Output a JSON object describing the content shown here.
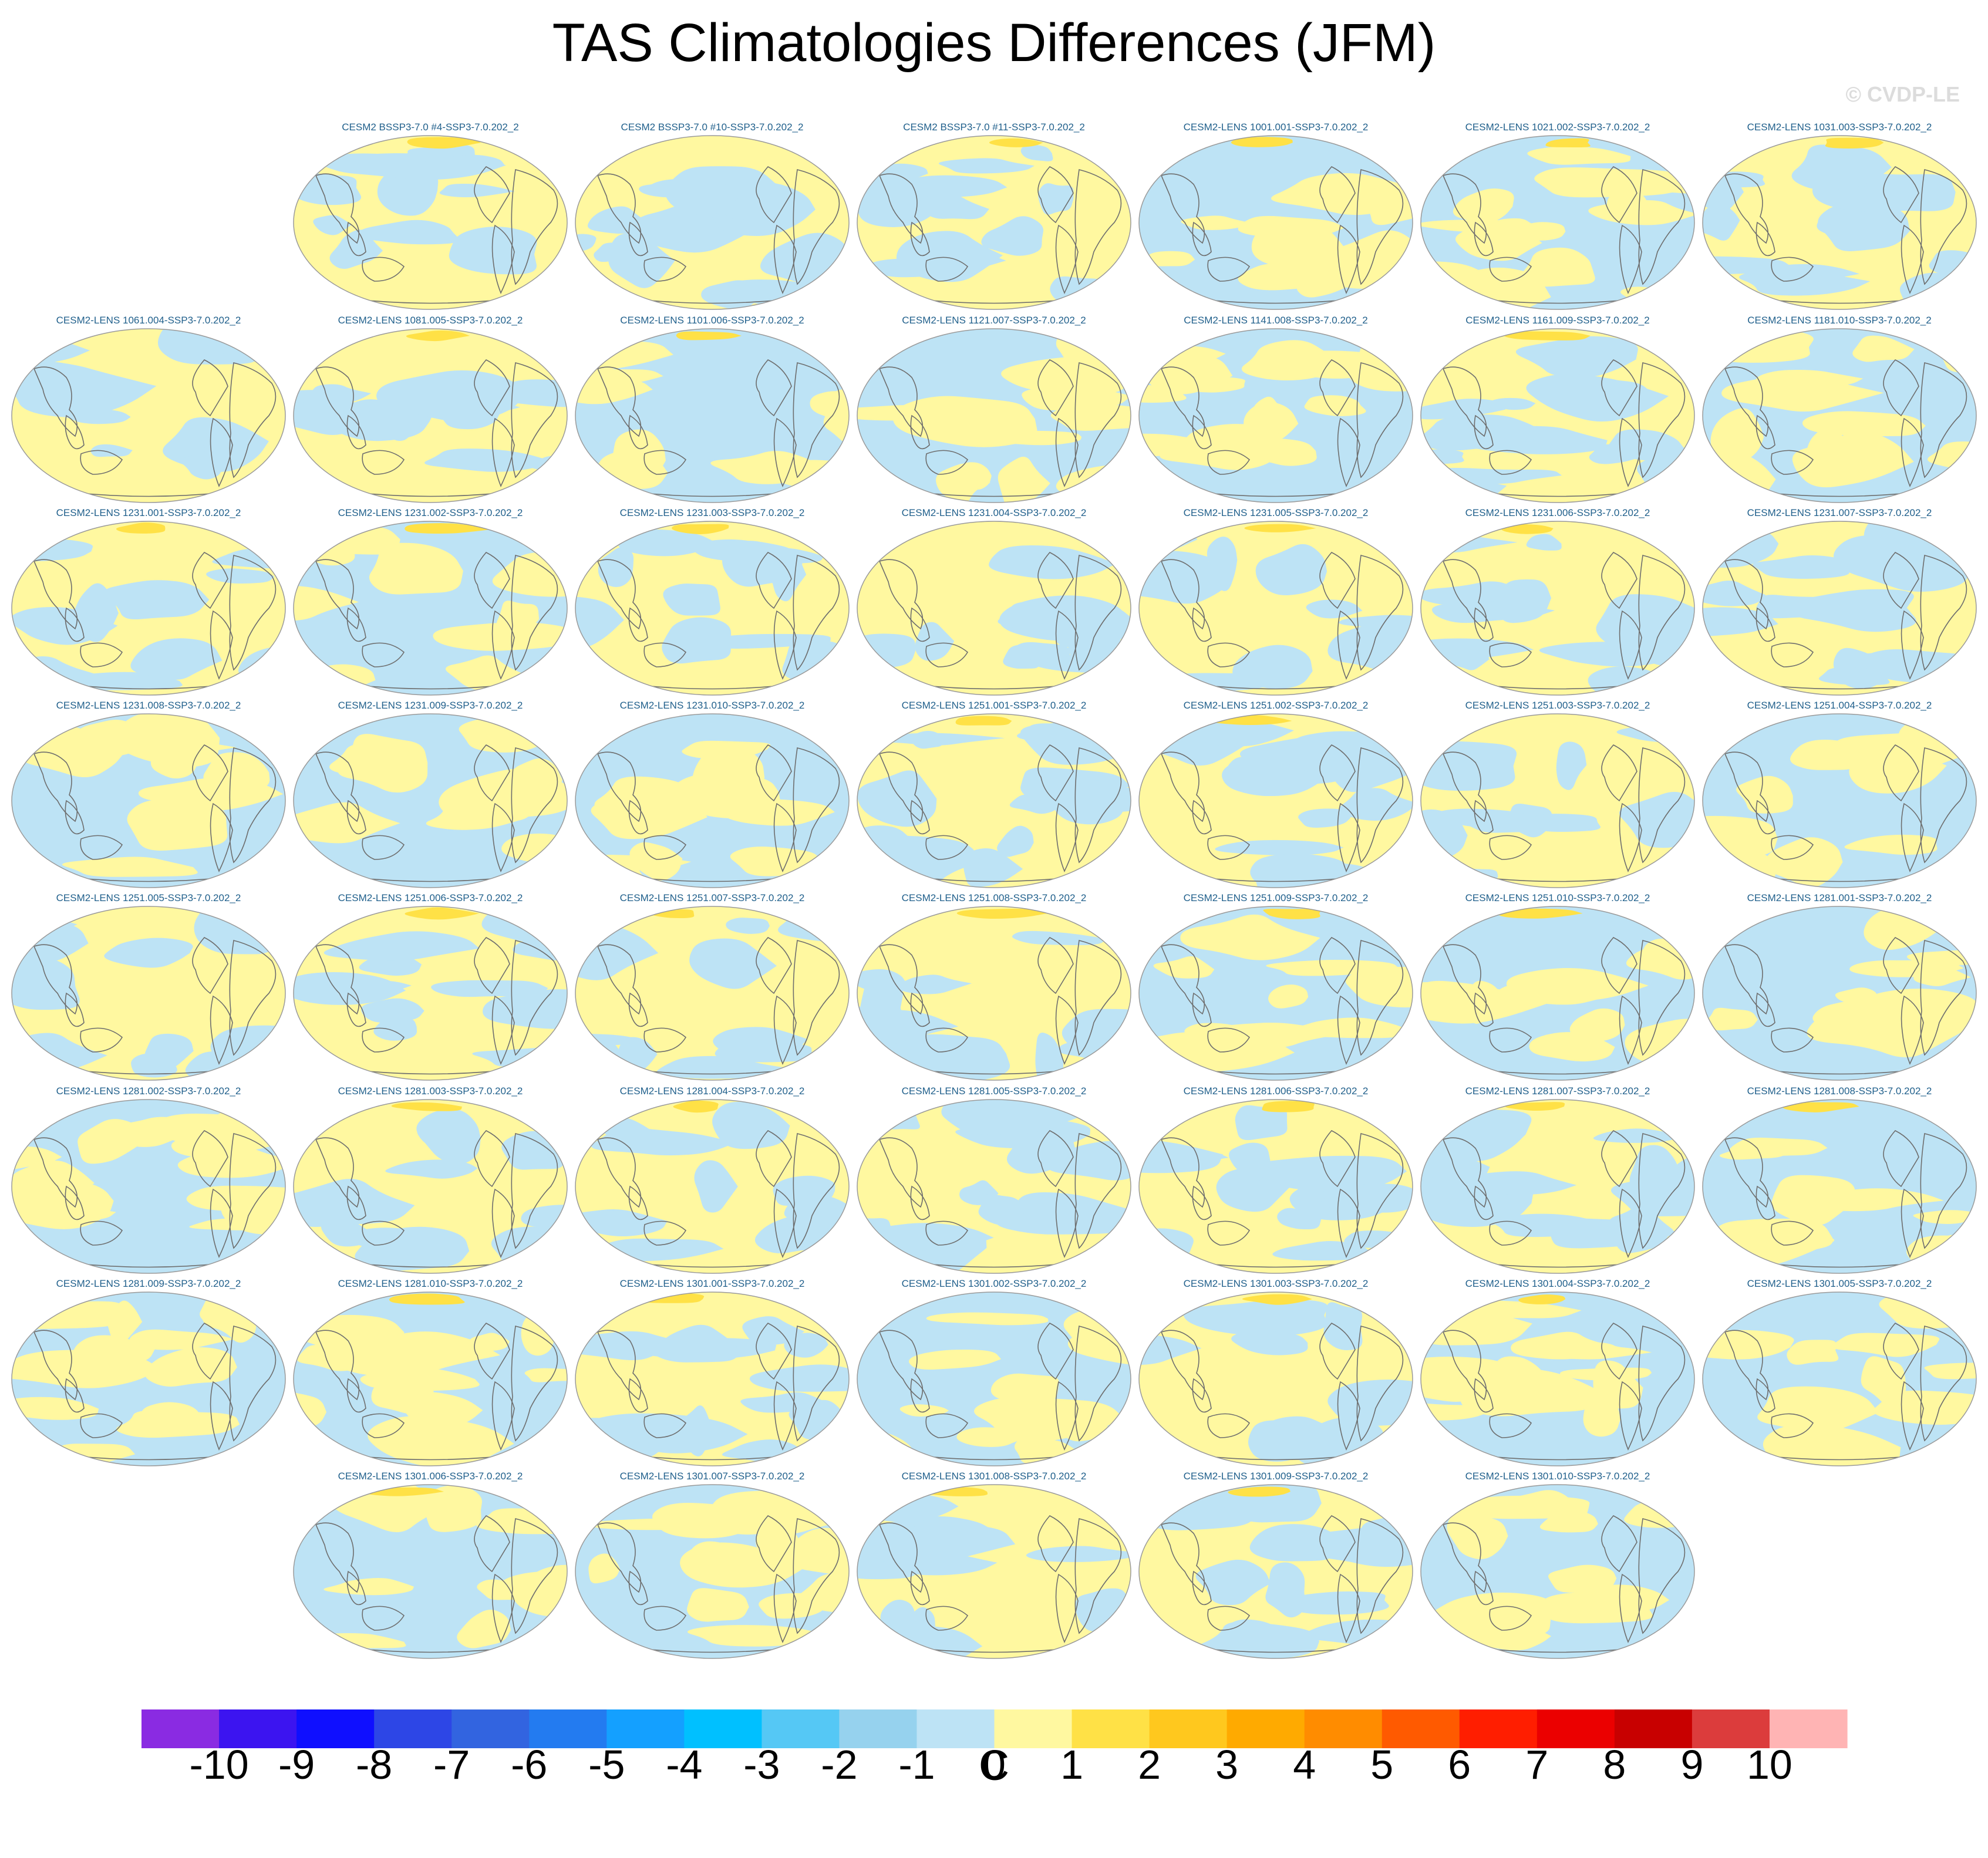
{
  "title": "TAS Climatologies Differences (JFM)",
  "watermark": "© CVDP-LE",
  "chart_data": {
    "type": "heatmap",
    "title": "TAS Climatologies Differences (JFM)",
    "projection": "Robinson (global, centered on Pacific)",
    "panel_rows": [
      [
        "CESM2 BSSP3-7.0 #4-SSP3-7.0.202_2",
        "CESM2 BSSP3-7.0 #10-SSP3-7.0.202_2",
        "CESM2 BSSP3-7.0 #11-SSP3-7.0.202_2",
        "CESM2-LENS 1001.001-SSP3-7.0.202_2",
        "CESM2-LENS 1021.002-SSP3-7.0.202_2",
        "CESM2-LENS 1031.003-SSP3-7.0.202_2"
      ],
      [
        "CESM2-LENS 1061.004-SSP3-7.0.202_2",
        "CESM2-LENS 1081.005-SSP3-7.0.202_2",
        "CESM2-LENS 1101.006-SSP3-7.0.202_2",
        "CESM2-LENS 1121.007-SSP3-7.0.202_2",
        "CESM2-LENS 1141.008-SSP3-7.0.202_2",
        "CESM2-LENS 1161.009-SSP3-7.0.202_2",
        "CESM2-LENS 1181.010-SSP3-7.0.202_2"
      ],
      [
        "CESM2-LENS 1231.001-SSP3-7.0.202_2",
        "CESM2-LENS 1231.002-SSP3-7.0.202_2",
        "CESM2-LENS 1231.003-SSP3-7.0.202_2",
        "CESM2-LENS 1231.004-SSP3-7.0.202_2",
        "CESM2-LENS 1231.005-SSP3-7.0.202_2",
        "CESM2-LENS 1231.006-SSP3-7.0.202_2",
        "CESM2-LENS 1231.007-SSP3-7.0.202_2"
      ],
      [
        "CESM2-LENS 1231.008-SSP3-7.0.202_2",
        "CESM2-LENS 1231.009-SSP3-7.0.202_2",
        "CESM2-LENS 1231.010-SSP3-7.0.202_2",
        "CESM2-LENS 1251.001-SSP3-7.0.202_2",
        "CESM2-LENS 1251.002-SSP3-7.0.202_2",
        "CESM2-LENS 1251.003-SSP3-7.0.202_2",
        "CESM2-LENS 1251.004-SSP3-7.0.202_2"
      ],
      [
        "CESM2-LENS 1251.005-SSP3-7.0.202_2",
        "CESM2-LENS 1251.006-SSP3-7.0.202_2",
        "CESM2-LENS 1251.007-SSP3-7.0.202_2",
        "CESM2-LENS 1251.008-SSP3-7.0.202_2",
        "CESM2-LENS 1251.009-SSP3-7.0.202_2",
        "CESM2-LENS 1251.010-SSP3-7.0.202_2",
        "CESM2-LENS 1281.001-SSP3-7.0.202_2"
      ],
      [
        "CESM2-LENS 1281.002-SSP3-7.0.202_2",
        "CESM2-LENS 1281.003-SSP3-7.0.202_2",
        "CESM2-LENS 1281.004-SSP3-7.0.202_2",
        "CESM2-LENS 1281.005-SSP3-7.0.202_2",
        "CESM2-LENS 1281.006-SSP3-7.0.202_2",
        "CESM2-LENS 1281.007-SSP3-7.0.202_2",
        "CESM2-LENS 1281.008-SSP3-7.0.202_2"
      ],
      [
        "CESM2-LENS 1281.009-SSP3-7.0.202_2",
        "CESM2-LENS 1281.010-SSP3-7.0.202_2",
        "CESM2-LENS 1301.001-SSP3-7.0.202_2",
        "CESM2-LENS 1301.002-SSP3-7.0.202_2",
        "CESM2-LENS 1301.003-SSP3-7.0.202_2",
        "CESM2-LENS 1301.004-SSP3-7.0.202_2",
        "CESM2-LENS 1301.005-SSP3-7.0.202_2"
      ],
      [
        "CESM2-LENS 1301.006-SSP3-7.0.202_2",
        "CESM2-LENS 1301.007-SSP3-7.0.202_2",
        "CESM2-LENS 1301.008-SSP3-7.0.202_2",
        "CESM2-LENS 1301.009-SSP3-7.0.202_2",
        "CESM2-LENS 1301.010-SSP3-7.0.202_2"
      ]
    ],
    "row_start_column": [
      1,
      0,
      0,
      0,
      0,
      0,
      0,
      1
    ],
    "colorbar": {
      "label": "C",
      "ticks": [
        "-10",
        "-9",
        "-8",
        "-7",
        "-6",
        "-5",
        "-4",
        "-3",
        "-2",
        "-1",
        "0",
        "1",
        "2",
        "3",
        "4",
        "5",
        "6",
        "7",
        "8",
        "9",
        "10"
      ],
      "colors": [
        "#8a2be2",
        "#3c14f0",
        "#0f0fff",
        "#2d46e6",
        "#3264e0",
        "#237bf0",
        "#14a0ff",
        "#00c0ff",
        "#55c8f5",
        "#96d2ee",
        "#bde3f5",
        "#fff8a0",
        "#ffe146",
        "#ffc81e",
        "#ffaa00",
        "#ff8c00",
        "#ff5a00",
        "#ff1e00",
        "#eb0000",
        "#c80000",
        "#dc3c3c",
        "#ffb4b4"
      ]
    },
    "fill_colors": {
      "ocean_positive": "#fff8a0",
      "ocean_negative": "#bde3f5",
      "arctic_warm": "#ffe146",
      "coast": "#6e6e6e"
    }
  }
}
